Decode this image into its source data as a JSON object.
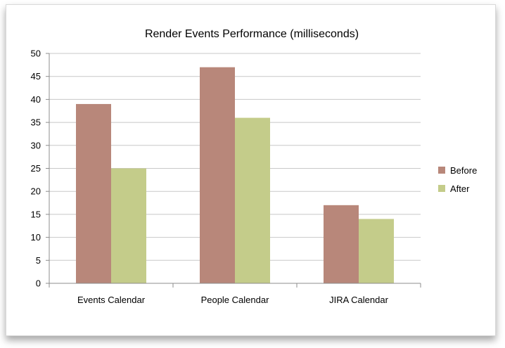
{
  "chart_data": {
    "type": "bar",
    "title": "Render Events Performance (milliseconds)",
    "xlabel": "",
    "ylabel": "",
    "categories": [
      "Events Calendar",
      "People Calendar",
      "JIRA Calendar"
    ],
    "series": [
      {
        "name": "Before",
        "values": [
          39,
          47,
          17
        ],
        "color": "#b8877a"
      },
      {
        "name": "After",
        "values": [
          25,
          36,
          14
        ],
        "color": "#c4cc8a"
      }
    ],
    "ylim": [
      0,
      50
    ],
    "yticks": [
      0,
      5,
      10,
      15,
      20,
      25,
      30,
      35,
      40,
      45,
      50
    ],
    "grid": true,
    "legend": "right"
  }
}
